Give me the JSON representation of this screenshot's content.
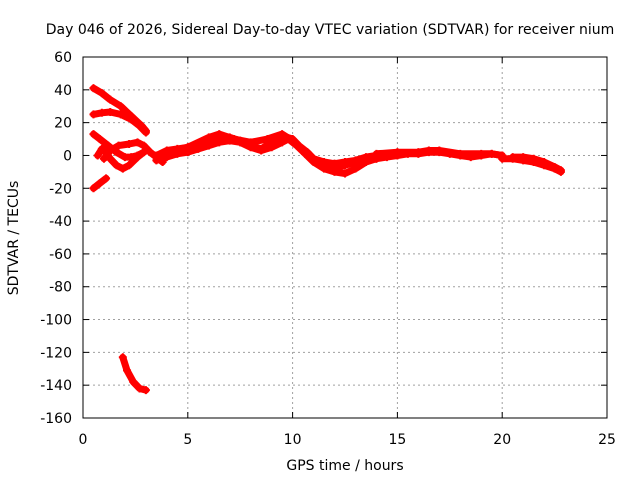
{
  "chart_data": {
    "type": "scatter",
    "title": "Day 046 of 2026, Sidereal Day-to-day VTEC variation (SDTVAR) for receiver nium",
    "xlabel": "GPS time / hours",
    "ylabel": "SDTVAR / TECUs",
    "xlim": [
      0,
      25
    ],
    "ylim": [
      -160,
      60
    ],
    "xticks": [
      "0",
      "5",
      "10",
      "15",
      "20",
      "25"
    ],
    "xtick_values": [
      0,
      5,
      10,
      15,
      20,
      25
    ],
    "yticks": [
      "60",
      "40",
      "20",
      "0",
      "-20",
      "-40",
      "-60",
      "-80",
      "-100",
      "-120",
      "-140",
      "-160"
    ],
    "ytick_values": [
      60,
      40,
      20,
      0,
      -20,
      -40,
      -60,
      -80,
      -100,
      -120,
      -140,
      -160
    ],
    "grid": true,
    "color": "#ff0000",
    "series": [
      {
        "name": "track-1",
        "points": [
          [
            0.5,
            41
          ],
          [
            0.9,
            38
          ],
          [
            1.3,
            34
          ],
          [
            1.8,
            30
          ],
          [
            2.3,
            24
          ],
          [
            2.8,
            18
          ],
          [
            3.0,
            15
          ]
        ]
      },
      {
        "name": "track-2",
        "points": [
          [
            0.5,
            25
          ],
          [
            0.9,
            26
          ],
          [
            1.3,
            26.5
          ],
          [
            1.8,
            25
          ],
          [
            2.3,
            22
          ],
          [
            2.7,
            18
          ],
          [
            3.0,
            14
          ]
        ]
      },
      {
        "name": "track-3",
        "points": [
          [
            0.5,
            13
          ],
          [
            0.8,
            10
          ],
          [
            1.2,
            6
          ],
          [
            1.6,
            2
          ],
          [
            2.0,
            -1
          ],
          [
            2.3,
            -1
          ],
          [
            2.6,
            0
          ],
          [
            2.9,
            2
          ]
        ]
      },
      {
        "name": "track-4",
        "points": [
          [
            0.7,
            0
          ],
          [
            0.9,
            4
          ],
          [
            1.1,
            2
          ],
          [
            1.3,
            -2
          ],
          [
            1.6,
            -6
          ],
          [
            1.9,
            -8
          ],
          [
            2.2,
            -6
          ],
          [
            2.6,
            -1
          ],
          [
            3.0,
            3
          ]
        ]
      },
      {
        "name": "track-5",
        "points": [
          [
            1.0,
            -2
          ],
          [
            1.3,
            3
          ],
          [
            1.7,
            6
          ],
          [
            2.2,
            7
          ],
          [
            2.6,
            8
          ],
          [
            2.9,
            6
          ],
          [
            3.2,
            2
          ],
          [
            3.5,
            -1
          ],
          [
            3.8,
            -4
          ]
        ]
      },
      {
        "name": "track-6",
        "points": [
          [
            0.5,
            -20
          ],
          [
            0.8,
            -17
          ],
          [
            1.1,
            -14
          ]
        ]
      },
      {
        "name": "track-7",
        "points": [
          [
            1.9,
            -123
          ],
          [
            2.1,
            -131
          ],
          [
            2.4,
            -138
          ],
          [
            2.7,
            -142
          ],
          [
            3.0,
            -143
          ]
        ]
      },
      {
        "name": "track-8",
        "points": [
          [
            3.5,
            0
          ],
          [
            4.0,
            3
          ],
          [
            4.5,
            4
          ],
          [
            5.0,
            5
          ],
          [
            5.5,
            7
          ],
          [
            6.0,
            10
          ],
          [
            6.5,
            12
          ],
          [
            7.0,
            11
          ],
          [
            7.5,
            9
          ],
          [
            8.0,
            6
          ],
          [
            8.5,
            4
          ],
          [
            9.0,
            8
          ],
          [
            9.5,
            12
          ],
          [
            10.0,
            10
          ],
          [
            10.3,
            6
          ],
          [
            10.7,
            2
          ],
          [
            11.0,
            -2
          ],
          [
            11.5,
            -4
          ],
          [
            12.0,
            -5
          ],
          [
            12.5,
            -4
          ],
          [
            13.0,
            -3
          ],
          [
            13.5,
            -1
          ],
          [
            14.0,
            0
          ]
        ]
      },
      {
        "name": "track-9",
        "points": [
          [
            3.5,
            -3
          ],
          [
            4.0,
            -1
          ],
          [
            4.5,
            1
          ],
          [
            5.0,
            2
          ],
          [
            5.5,
            4
          ],
          [
            6.0,
            6
          ],
          [
            6.5,
            8
          ],
          [
            7.0,
            9
          ],
          [
            7.5,
            8
          ],
          [
            8.0,
            5
          ],
          [
            8.5,
            3
          ],
          [
            9.0,
            5
          ],
          [
            9.5,
            8
          ],
          [
            9.8,
            10
          ],
          [
            10.2,
            6
          ],
          [
            10.6,
            1
          ],
          [
            11.0,
            -4
          ],
          [
            11.5,
            -8
          ],
          [
            12.0,
            -10
          ],
          [
            12.5,
            -11
          ],
          [
            13.0,
            -8
          ],
          [
            13.5,
            -4
          ],
          [
            14.0,
            -2
          ]
        ]
      },
      {
        "name": "track-10",
        "points": [
          [
            4.0,
            2
          ],
          [
            5.0,
            5
          ],
          [
            6.0,
            11
          ],
          [
            6.5,
            13
          ],
          [
            7.2,
            10
          ],
          [
            8.0,
            8
          ],
          [
            8.8,
            10
          ],
          [
            9.5,
            13
          ],
          [
            10.0,
            9
          ],
          [
            10.5,
            3
          ],
          [
            11.0,
            -3
          ],
          [
            11.5,
            -6
          ],
          [
            12.0,
            -8
          ],
          [
            12.5,
            -6
          ],
          [
            13.0,
            -4
          ],
          [
            13.5,
            -2
          ]
        ]
      },
      {
        "name": "track-11",
        "points": [
          [
            14.0,
            -2
          ],
          [
            14.5,
            -1
          ],
          [
            15.0,
            0
          ],
          [
            15.5,
            1
          ],
          [
            16.0,
            1
          ],
          [
            16.5,
            2
          ],
          [
            17.0,
            2
          ],
          [
            17.5,
            1
          ],
          [
            18.0,
            0
          ],
          [
            18.5,
            -1
          ],
          [
            19.0,
            0
          ],
          [
            19.5,
            1
          ],
          [
            20.0,
            0
          ]
        ]
      },
      {
        "name": "track-12",
        "points": [
          [
            14.0,
            1
          ],
          [
            15.0,
            2
          ],
          [
            16.0,
            2
          ],
          [
            16.5,
            3
          ],
          [
            17.0,
            3
          ],
          [
            18.0,
            1
          ],
          [
            19.0,
            1
          ],
          [
            19.5,
            1
          ],
          [
            20.0,
            0
          ]
        ]
      },
      {
        "name": "track-13",
        "points": [
          [
            20.0,
            -2
          ],
          [
            20.5,
            -2
          ],
          [
            21.0,
            -3
          ],
          [
            21.5,
            -4
          ],
          [
            22.0,
            -6
          ],
          [
            22.5,
            -8
          ],
          [
            22.8,
            -10
          ]
        ]
      },
      {
        "name": "track-14",
        "points": [
          [
            20.5,
            -1
          ],
          [
            21.0,
            -1
          ],
          [
            21.5,
            -2
          ],
          [
            22.0,
            -4
          ],
          [
            22.5,
            -7
          ],
          [
            22.8,
            -9
          ]
        ]
      }
    ]
  }
}
